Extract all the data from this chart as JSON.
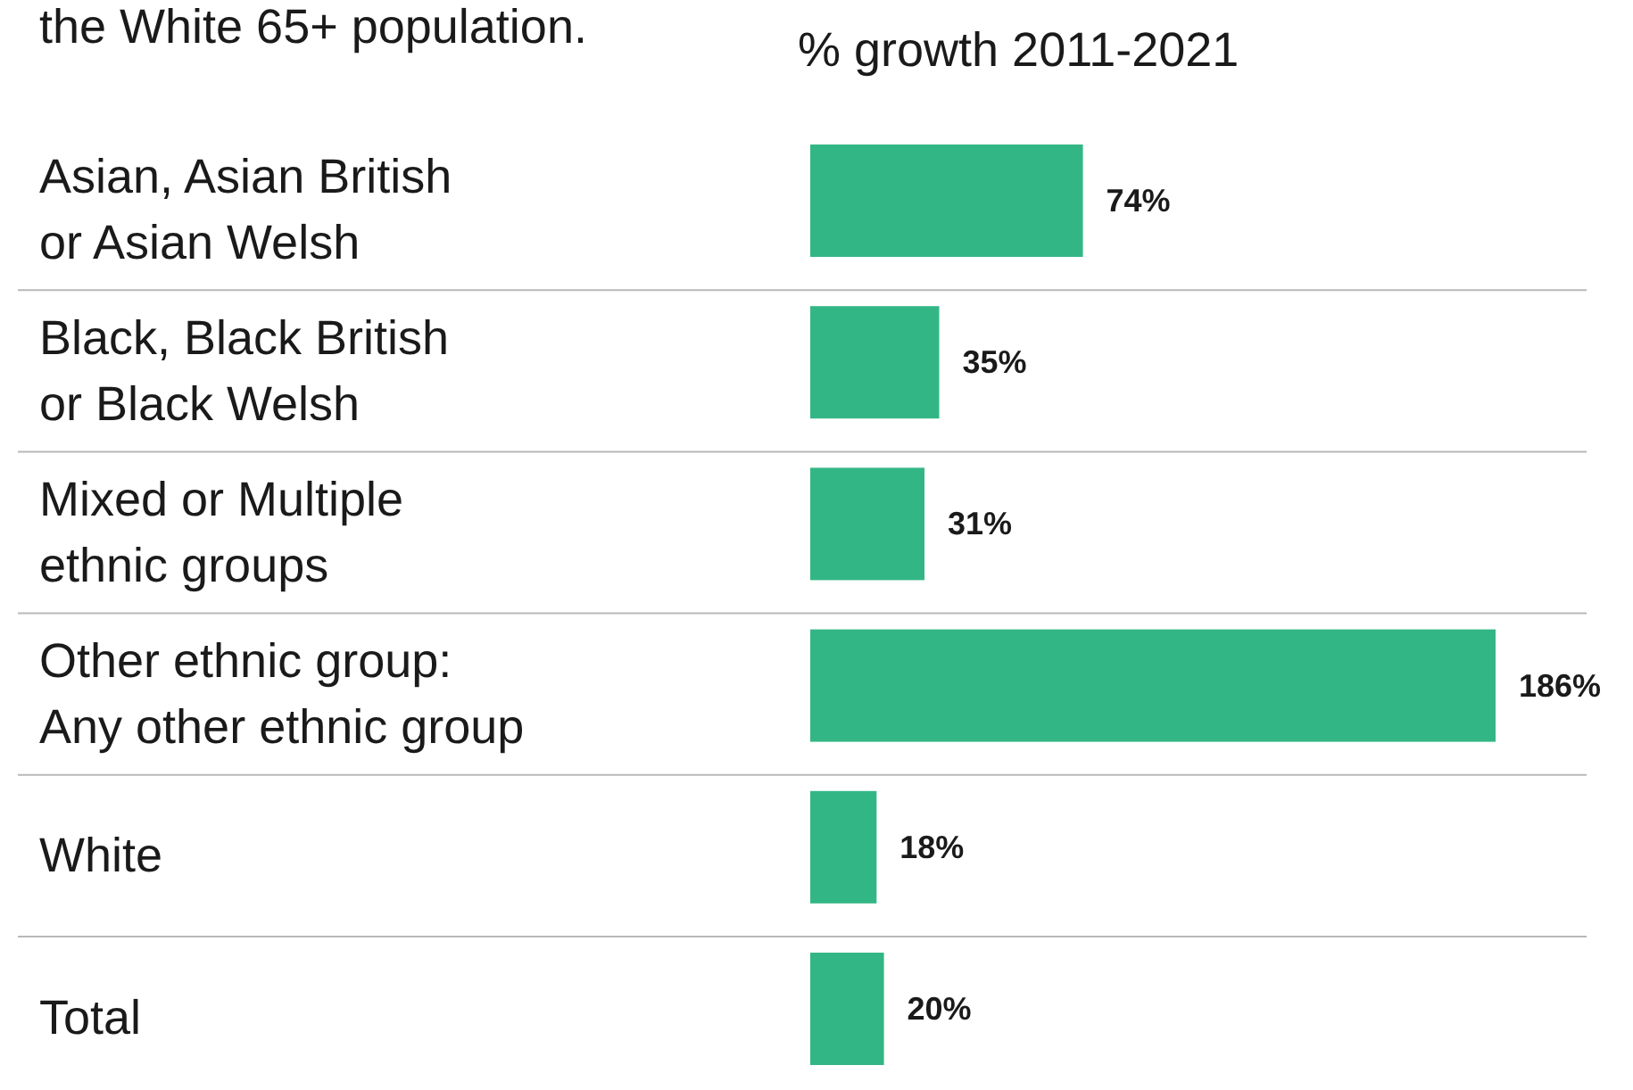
{
  "chart_data": {
    "type": "bar",
    "orientation": "horizontal",
    "title": "the White 65+ population.",
    "xlabel": "% growth 2011-2021",
    "categories": [
      "Asian, Asian British\nor Asian Welsh",
      "Black, Black British\nor Black Welsh",
      "Mixed or Multiple\nethnic groups",
      "Other ethnic group:\nAny other ethnic group",
      "White",
      "Total"
    ],
    "values": [
      74,
      35,
      31,
      186,
      18,
      20
    ],
    "value_labels": [
      "74%",
      "35%",
      "31%",
      "186%",
      "18%",
      "20%"
    ],
    "color": "#33b685",
    "grid": "y"
  }
}
